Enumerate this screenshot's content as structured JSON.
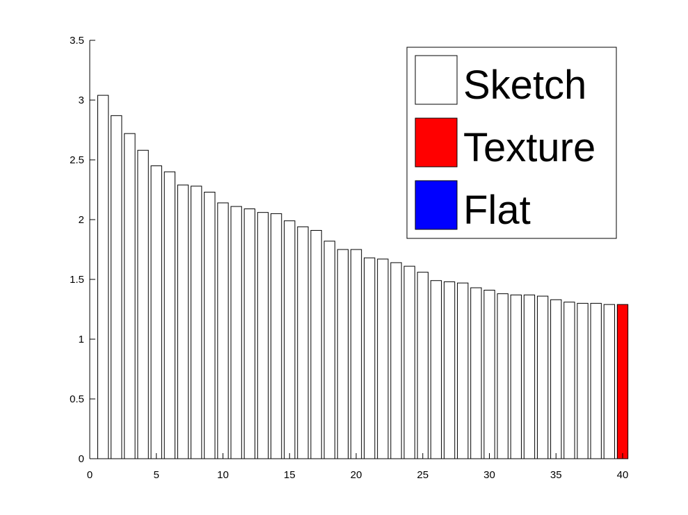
{
  "chart_data": {
    "type": "bar",
    "title": "",
    "xlabel": "",
    "ylabel": "",
    "xlim": [
      0,
      40
    ],
    "ylim": [
      0,
      3.5
    ],
    "x_ticks": [
      0,
      5,
      10,
      15,
      20,
      25,
      30,
      35,
      40
    ],
    "x_tick_labels": [
      "0",
      "5",
      "10",
      "15",
      "20",
      "25",
      "30",
      "35",
      "40"
    ],
    "y_ticks": [
      0,
      0.5,
      1,
      1.5,
      2,
      2.5,
      3,
      3.5
    ],
    "y_tick_labels": [
      "0",
      "0.5",
      "1",
      "1.5",
      "2",
      "2.5",
      "3",
      "3.5"
    ],
    "grid": false,
    "legend_position": "top-right",
    "legend": [
      {
        "label": "Sketch",
        "color": "#ffffff"
      },
      {
        "label": "Texture",
        "color": "#ff0000"
      },
      {
        "label": "Flat",
        "color": "#0000ff"
      }
    ],
    "x": [
      1,
      2,
      3,
      4,
      5,
      6,
      7,
      8,
      9,
      10,
      11,
      12,
      13,
      14,
      15,
      16,
      17,
      18,
      19,
      20,
      21,
      22,
      23,
      24,
      25,
      26,
      27,
      28,
      29,
      30,
      31,
      32,
      33,
      34,
      35,
      36,
      37,
      38,
      39,
      40
    ],
    "values": [
      3.04,
      2.87,
      2.72,
      2.58,
      2.45,
      2.4,
      2.29,
      2.28,
      2.23,
      2.14,
      2.11,
      2.09,
      2.06,
      2.05,
      1.99,
      1.94,
      1.91,
      1.82,
      1.75,
      1.75,
      1.68,
      1.67,
      1.64,
      1.61,
      1.56,
      1.49,
      1.48,
      1.47,
      1.43,
      1.41,
      1.38,
      1.37,
      1.37,
      1.36,
      1.33,
      1.31,
      1.3,
      1.3,
      1.29,
      1.29
    ],
    "categories_by_bar": [
      "Sketch",
      "Sketch",
      "Sketch",
      "Sketch",
      "Sketch",
      "Sketch",
      "Sketch",
      "Sketch",
      "Sketch",
      "Sketch",
      "Sketch",
      "Sketch",
      "Sketch",
      "Sketch",
      "Sketch",
      "Sketch",
      "Sketch",
      "Sketch",
      "Sketch",
      "Sketch",
      "Sketch",
      "Sketch",
      "Sketch",
      "Sketch",
      "Sketch",
      "Sketch",
      "Sketch",
      "Sketch",
      "Sketch",
      "Sketch",
      "Sketch",
      "Sketch",
      "Sketch",
      "Sketch",
      "Sketch",
      "Sketch",
      "Sketch",
      "Sketch",
      "Sketch",
      "Texture"
    ]
  }
}
